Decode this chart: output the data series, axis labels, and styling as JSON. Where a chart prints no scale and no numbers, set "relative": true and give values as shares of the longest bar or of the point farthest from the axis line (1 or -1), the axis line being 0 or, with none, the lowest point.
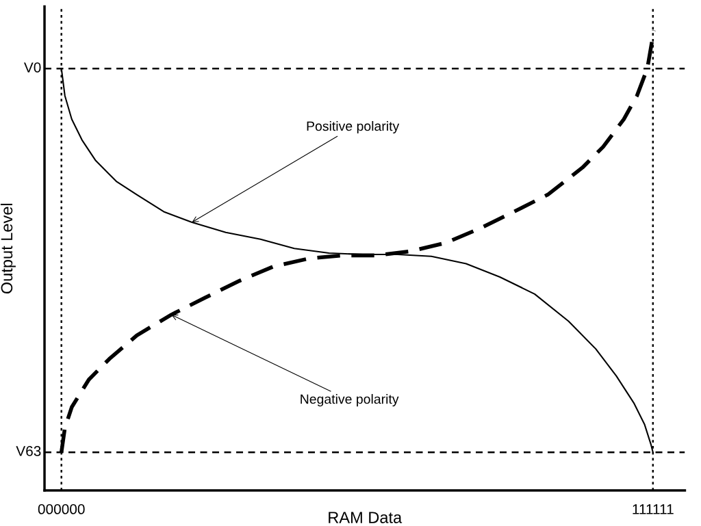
{
  "chart_data": {
    "type": "line",
    "xlabel": "RAM Data",
    "ylabel": "Output Level",
    "relative": true,
    "xlim": [
      -3175,
      117110
    ],
    "xticks": [
      {
        "value": 0,
        "label": "000000"
      },
      111111
    ],
    "grid": false,
    "legend": false,
    "series": [
      {
        "color": "#000000",
        "line_style": "solid",
        "x": [
          0,
          653,
          1940,
          3860,
          6440,
          10300,
          14160,
          19220,
          24520,
          30860,
          37390,
          43740,
          50260,
          56610,
          63140,
          69490,
          76010,
          82360,
          88890,
          95240,
          100350,
          104230,
          107580,
          109520,
          110760,
          111111
        ],
        "values": [
          0.917,
          0.858,
          0.807,
          0.762,
          0.717,
          0.672,
          0.643,
          0.606,
          0.583,
          0.561,
          0.546,
          0.526,
          0.516,
          0.513,
          0.513,
          0.509,
          0.493,
          0.464,
          0.427,
          0.368,
          0.308,
          0.249,
          0.189,
          0.144,
          0.099,
          0.083
        ]
      },
      {
        "color": "#000000",
        "line_style": "dashed",
        "x": [
          0,
          653,
          1940,
          5150,
          9010,
          14160,
          20640,
          26980,
          33510,
          39860,
          46380,
          52730,
          59260,
          65610,
          72130,
          78480,
          85010,
          91360,
          97880,
          101760,
          105640,
          108110,
          110050,
          111290
        ],
        "values": [
          0.083,
          0.136,
          0.181,
          0.241,
          0.286,
          0.337,
          0.382,
          0.419,
          0.456,
          0.487,
          0.504,
          0.511,
          0.511,
          0.52,
          0.538,
          0.569,
          0.606,
          0.643,
          0.702,
          0.747,
          0.807,
          0.858,
          0.917,
          1.0
        ]
      }
    ],
    "ref_lines": [
      {
        "axis": "y",
        "value": 0.917,
        "label": "V0",
        "color": "#000000",
        "line_style": "dashed"
      },
      {
        "axis": "y",
        "value": 0.083,
        "label": "V63",
        "color": "#000000",
        "line_style": "dashed"
      },
      {
        "axis": "x",
        "value": 0,
        "color": "#000000",
        "line_style": "dotted"
      },
      {
        "axis": "x",
        "value": 111111,
        "color": "#000000",
        "line_style": "dotted"
      }
    ],
    "annotations": [
      {
        "text": "Positive polarity",
        "x": 24520,
        "y": 0.583
      },
      {
        "text": "Negative polarity",
        "x": 20640,
        "y": 0.382
      }
    ]
  }
}
